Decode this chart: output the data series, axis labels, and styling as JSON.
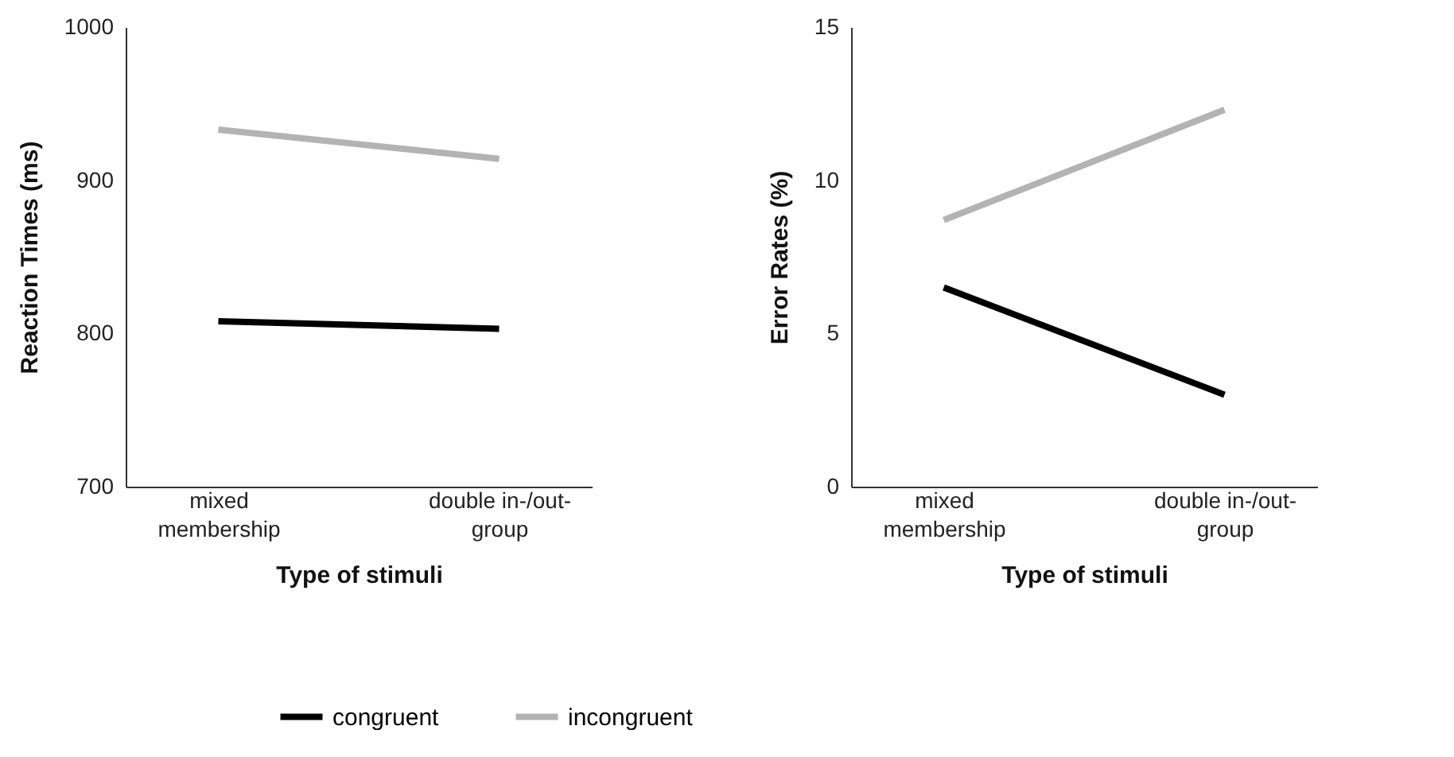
{
  "chart_data": [
    {
      "type": "line",
      "xlabel": "Type of stimuli",
      "ylabel": "Reaction Times (ms)",
      "categories": [
        "mixed membership",
        "double in-/out-group"
      ],
      "ylim": [
        700,
        1000
      ],
      "yticks": [
        700,
        800,
        900,
        1000
      ],
      "grid": false,
      "legend": "bottom",
      "series": [
        {
          "name": "congruent",
          "color": "#000000",
          "values": [
            808,
            803
          ]
        },
        {
          "name": "incongruent",
          "color": "#b3b3b3",
          "values": [
            933,
            914
          ]
        }
      ]
    },
    {
      "type": "line",
      "xlabel": "Type of stimuli",
      "ylabel": "Error Rates (%)",
      "categories": [
        "mixed membership",
        "double in-/out-group"
      ],
      "ylim": [
        0,
        15
      ],
      "yticks": [
        0,
        5,
        10,
        15
      ],
      "grid": false,
      "legend": "bottom",
      "series": [
        {
          "name": "congruent",
          "color": "#000000",
          "values": [
            6.5,
            3.0
          ]
        },
        {
          "name": "incongruent",
          "color": "#b3b3b3",
          "values": [
            8.7,
            12.3
          ]
        }
      ]
    }
  ]
}
